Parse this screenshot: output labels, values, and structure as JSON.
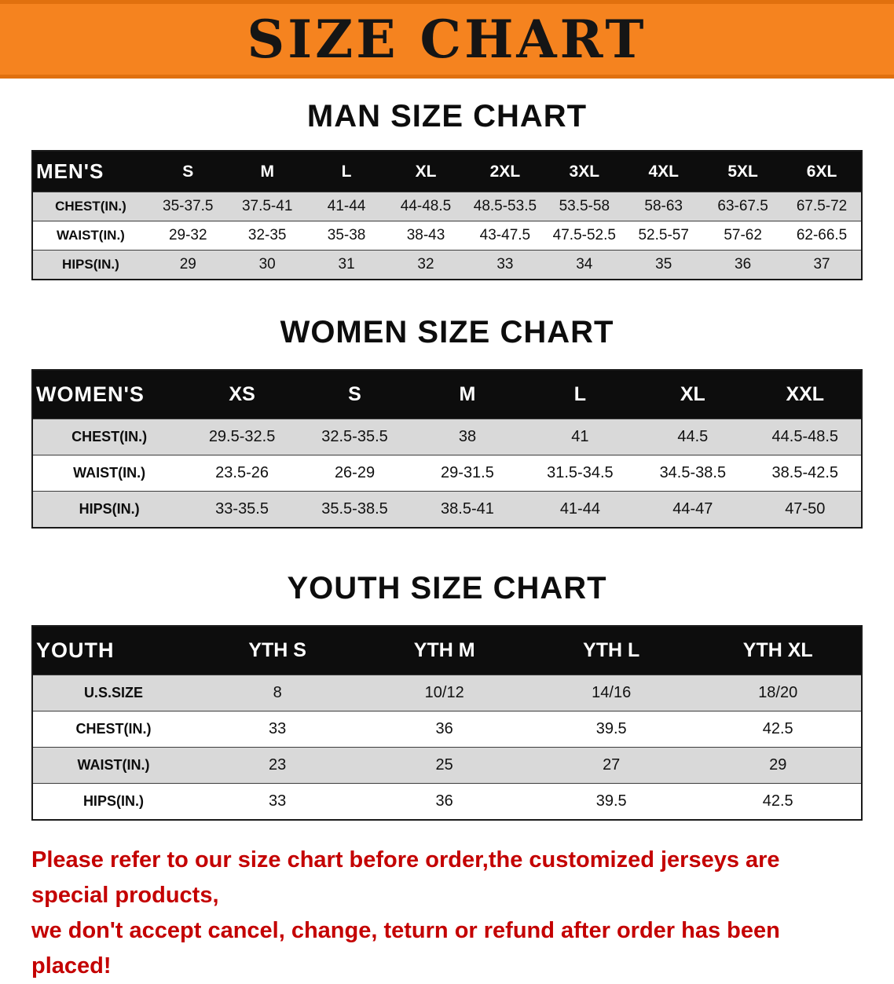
{
  "banner": {
    "title": "SIZE CHART",
    "bg": "#f5831f"
  },
  "sections": [
    {
      "id": "men",
      "heading": "MAN SIZE CHART",
      "corner": "MEN'S",
      "sizes": [
        "S",
        "M",
        "L",
        "XL",
        "2XL",
        "3XL",
        "4XL",
        "5XL",
        "6XL"
      ],
      "rows": [
        {
          "label": "CHEST(IN.)",
          "values": [
            "35-37.5",
            "37.5-41",
            "41-44",
            "44-48.5",
            "48.5-53.5",
            "53.5-58",
            "58-63",
            "63-67.5",
            "67.5-72"
          ]
        },
        {
          "label": "WAIST(IN.)",
          "values": [
            "29-32",
            "32-35",
            "35-38",
            "38-43",
            "43-47.5",
            "47.5-52.5",
            "52.5-57",
            "57-62",
            "62-66.5"
          ]
        },
        {
          "label": "HIPS(IN.)",
          "values": [
            "29",
            "30",
            "31",
            "32",
            "33",
            "34",
            "35",
            "36",
            "37"
          ]
        }
      ]
    },
    {
      "id": "women",
      "heading": "WOMEN SIZE CHART",
      "corner": "WOMEN'S",
      "sizes": [
        "XS",
        "S",
        "M",
        "L",
        "XL",
        "XXL"
      ],
      "rows": [
        {
          "label": "CHEST(IN.)",
          "values": [
            "29.5-32.5",
            "32.5-35.5",
            "38",
            "41",
            "44.5",
            "44.5-48.5"
          ]
        },
        {
          "label": "WAIST(IN.)",
          "values": [
            "23.5-26",
            "26-29",
            "29-31.5",
            "31.5-34.5",
            "34.5-38.5",
            "38.5-42.5"
          ]
        },
        {
          "label": "HIPS(IN.)",
          "values": [
            "33-35.5",
            "35.5-38.5",
            "38.5-41",
            "41-44",
            "44-47",
            "47-50"
          ]
        }
      ]
    },
    {
      "id": "youth",
      "heading": "YOUTH SIZE CHART",
      "corner": "YOUTH",
      "sizes": [
        "YTH S",
        "YTH M",
        "YTH L",
        "YTH XL"
      ],
      "rows": [
        {
          "label": "U.S.SIZE",
          "values": [
            "8",
            "10/12",
            "14/16",
            "18/20"
          ]
        },
        {
          "label": "CHEST(IN.)",
          "values": [
            "33",
            "36",
            "39.5",
            "42.5"
          ]
        },
        {
          "label": "WAIST(IN.)",
          "values": [
            "23",
            "25",
            "27",
            "29"
          ]
        },
        {
          "label": "HIPS(IN.)",
          "values": [
            "33",
            "36",
            "39.5",
            "42.5"
          ]
        }
      ]
    }
  ],
  "disclaimer": {
    "line1": "Please refer to our size chart before order,the customized jerseys are special products,",
    "line2": "we don't accept cancel, change, teturn or refund after order has been placed!",
    "color": "#c40000"
  }
}
